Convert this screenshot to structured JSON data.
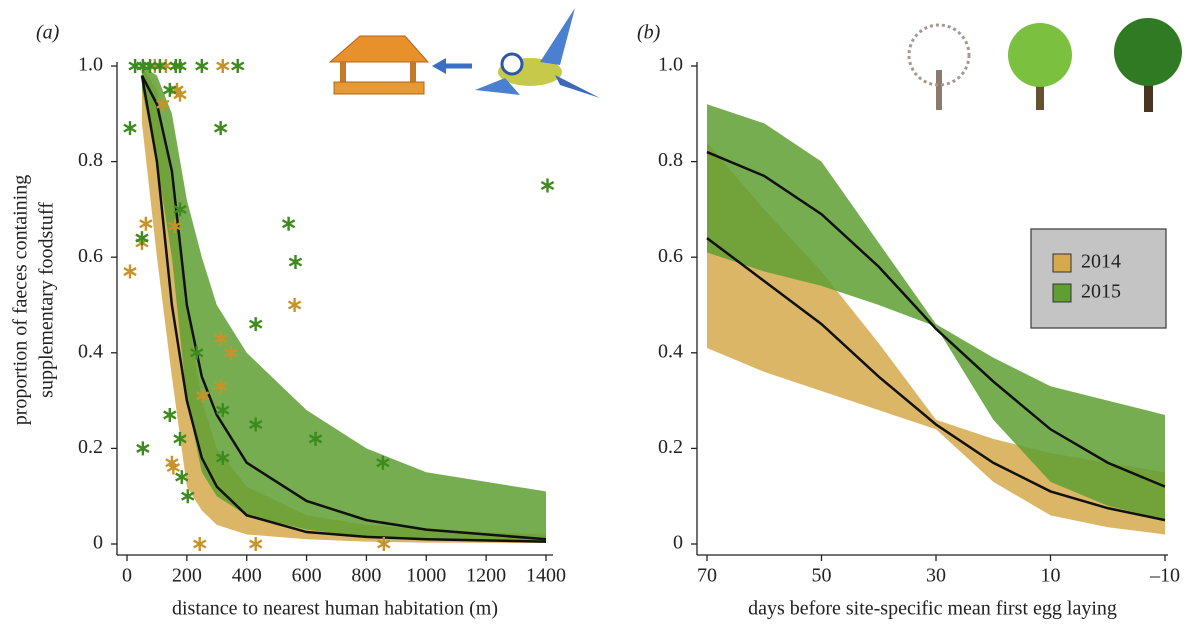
{
  "chart_data": [
    {
      "type": "scatter",
      "panel_label": "(a)",
      "xlabel": "distance to nearest human habitation (m)",
      "ylabel": [
        "proportion of faeces containing",
        "supplementary foodstuff"
      ],
      "xlim": [
        0,
        1400
      ],
      "ylim": [
        0,
        1
      ],
      "xticks": [
        0,
        200,
        400,
        600,
        800,
        1000,
        1200,
        1400
      ],
      "yticks": [
        0,
        0.2,
        0.4,
        0.6,
        0.8,
        {
          "value": 1,
          "label": "1.0"
        }
      ],
      "series": [
        {
          "color": "#c8922a",
          "x": [
            10,
            50,
            63,
            93,
            120,
            130,
            150,
            155,
            160,
            167,
            177,
            243,
            253,
            313,
            313,
            320,
            347,
            430,
            560,
            858
          ],
          "values": [
            0.57,
            0.63,
            0.67,
            1.0,
            0.92,
            1.0,
            0.17,
            0.16,
            0.665,
            0.95,
            0.94,
            0,
            0.31,
            0.43,
            0.33,
            1.0,
            0.4,
            0,
            0.5,
            0
          ]
        },
        {
          "color": "#3d8a1e",
          "x": [
            10,
            27,
            50,
            53,
            53,
            77,
            110,
            143,
            143,
            163,
            177,
            177,
            177,
            183,
            203,
            233,
            250,
            313,
            320,
            320,
            370,
            430,
            430,
            540,
            563,
            630,
            855,
            1405
          ],
          "values": [
            0.87,
            1.0,
            0.64,
            0.2,
            1.0,
            1.0,
            1.0,
            0.27,
            0.95,
            1.0,
            0.22,
            0.7,
            1.0,
            0.14,
            0.1,
            0.4,
            1.0,
            0.87,
            0.28,
            0.18,
            1.0,
            0.46,
            0.25,
            0.67,
            0.59,
            0.22,
            0.17,
            0.75
          ]
        }
      ],
      "fits": [
        {
          "color": "#d6a94c",
          "x": [
            50,
            100,
            150,
            200,
            250,
            300,
            400,
            600,
            800,
            1000,
            1400
          ],
          "values": [
            0.98,
            0.8,
            0.5,
            0.3,
            0.18,
            0.12,
            0.06,
            0.025,
            0.015,
            0.01,
            0.005
          ],
          "lower": [
            0.88,
            0.6,
            0.35,
            0.12,
            0.07,
            0.04,
            0.02,
            0.01,
            0.005,
            0.003,
            0.002
          ],
          "upper": [
            1.0,
            0.95,
            0.75,
            0.5,
            0.3,
            0.2,
            0.12,
            0.06,
            0.04,
            0.03,
            0.02
          ]
        },
        {
          "color": "#5f9f32",
          "x": [
            50,
            100,
            150,
            200,
            250,
            300,
            400,
            600,
            800,
            1000,
            1400
          ],
          "values": [
            0.98,
            0.92,
            0.78,
            0.5,
            0.35,
            0.27,
            0.17,
            0.09,
            0.05,
            0.03,
            0.01
          ],
          "lower": [
            0.95,
            0.8,
            0.6,
            0.3,
            0.15,
            0.1,
            0.06,
            0.03,
            0.015,
            0.01,
            0.003
          ],
          "upper": [
            1.0,
            0.98,
            0.9,
            0.72,
            0.6,
            0.5,
            0.4,
            0.28,
            0.2,
            0.15,
            0.11
          ]
        }
      ]
    },
    {
      "type": "line",
      "panel_label": "(b)",
      "xlabel": "days before site-specific mean first egg laying",
      "xlim": [
        70,
        -10
      ],
      "ylim": [
        0,
        1
      ],
      "xticks": [
        70,
        50,
        30,
        10,
        {
          "value": -10,
          "label": "–10"
        }
      ],
      "yticks": [
        0,
        0.2,
        0.4,
        0.6,
        0.8,
        {
          "value": 1,
          "label": "1.0"
        }
      ],
      "legend": "right",
      "series": [
        {
          "name": "2014",
          "color": "#d6a94c",
          "x": [
            70,
            60,
            50,
            40,
            30,
            20,
            10,
            0,
            -10
          ],
          "values": [
            0.64,
            0.55,
            0.46,
            0.35,
            0.25,
            0.17,
            0.11,
            0.075,
            0.05
          ],
          "lower": [
            0.41,
            0.36,
            0.32,
            0.28,
            0.24,
            0.13,
            0.06,
            0.035,
            0.02
          ],
          "upper": [
            0.84,
            0.7,
            0.57,
            0.42,
            0.26,
            0.22,
            0.19,
            0.17,
            0.15
          ]
        },
        {
          "name": "2015",
          "color": "#5f9f32",
          "x": [
            70,
            60,
            50,
            40,
            30,
            20,
            10,
            0,
            -10
          ],
          "values": [
            0.82,
            0.77,
            0.69,
            0.58,
            0.45,
            0.34,
            0.24,
            0.17,
            0.12
          ],
          "lower": [
            0.61,
            0.57,
            0.54,
            0.5,
            0.455,
            0.26,
            0.13,
            0.08,
            0.05
          ],
          "upper": [
            0.92,
            0.88,
            0.8,
            0.63,
            0.46,
            0.39,
            0.33,
            0.3,
            0.27
          ]
        }
      ]
    }
  ]
}
